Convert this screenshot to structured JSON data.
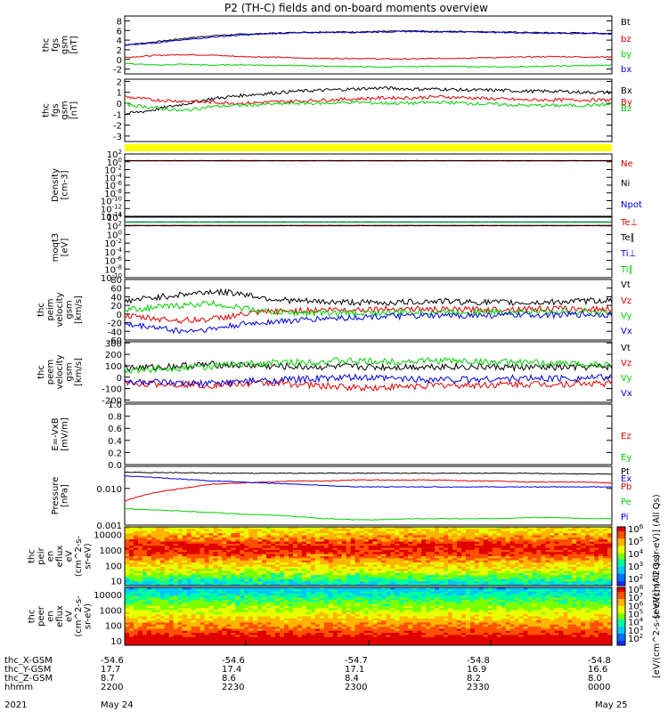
{
  "title": "P2 (TH-C) fields and on-board moments overview",
  "colors": {
    "black": "#000000",
    "red": "#e00000",
    "green": "#00d000",
    "blue": "#0000e0",
    "yellow": "#ffff00"
  },
  "chart_data": [
    {
      "type": "line",
      "id": "fgs",
      "ylabel": [
        "thc",
        "fgs",
        "gsm",
        "[nT]"
      ],
      "ylim": [
        -3,
        9
      ],
      "yticks": [
        "8",
        "6",
        "4",
        "2",
        "0",
        "-2"
      ],
      "series": [
        {
          "name": "Bt",
          "color": "black",
          "values": [
            3.0,
            3.6,
            4.3,
            4.9,
            5.2,
            5.4,
            5.6,
            5.7,
            5.7,
            5.8,
            5.9,
            5.8,
            5.8,
            5.7,
            5.6,
            5.5,
            5.5,
            5.4
          ]
        },
        {
          "name": "bz",
          "color": "red",
          "values": [
            0.4,
            0.8,
            1.0,
            0.9,
            0.6,
            0.5,
            0.3,
            0.2,
            0.2,
            0.1,
            0.1,
            0.2,
            0.3,
            0.4,
            0.5,
            0.6,
            0.5,
            0.5
          ]
        },
        {
          "name": "by",
          "color": "green",
          "values": [
            -0.8,
            -1.2,
            -1.0,
            -1.2,
            -1.1,
            -1.2,
            -1.3,
            -1.4,
            -1.5,
            -1.6,
            -1.5,
            -1.4,
            -1.5,
            -1.6,
            -1.5,
            -1.4,
            -1.3,
            -1.2
          ]
        },
        {
          "name": "bx",
          "color": "blue",
          "values": [
            3.0,
            3.4,
            4.0,
            4.6,
            5.0,
            5.3,
            5.5,
            5.6,
            5.6,
            5.7,
            5.8,
            5.7,
            5.7,
            5.6,
            5.5,
            5.4,
            5.4,
            5.3
          ]
        }
      ]
    },
    {
      "type": "line",
      "id": "fgs_dsl",
      "ylabel": [
        "thc",
        "fgs",
        "gsm",
        "[nT]"
      ],
      "ylim": [
        -3.5,
        2.2
      ],
      "yticks": [
        "2",
        "1",
        "0",
        "-1",
        "-2",
        "-3"
      ],
      "series": [
        {
          "name": "Bx",
          "color": "black",
          "values": [
            -1.0,
            -0.6,
            -0.1,
            0.4,
            0.7,
            0.9,
            1.1,
            1.2,
            1.3,
            1.4,
            1.3,
            1.3,
            1.2,
            1.2,
            1.1,
            1.1,
            1.0,
            1.0
          ]
        },
        {
          "name": "By",
          "color": "red",
          "values": [
            0.6,
            0.3,
            0.2,
            0.1,
            0.0,
            0.1,
            0.2,
            0.3,
            0.4,
            0.5,
            0.5,
            0.6,
            0.5,
            0.4,
            0.3,
            0.3,
            0.3,
            0.3
          ]
        },
        {
          "name": "Bz",
          "color": "green",
          "values": [
            -0.1,
            -0.4,
            -0.7,
            -0.3,
            -0.2,
            -0.1,
            0.0,
            0.0,
            0.1,
            0.0,
            0.0,
            0.1,
            0.0,
            -0.1,
            -0.2,
            -0.2,
            -0.2,
            -0.1
          ]
        }
      ]
    },
    {
      "type": "line",
      "id": "density",
      "ylabel": [
        "Density",
        "[cm-3]"
      ],
      "ylim": [
        -14,
        2
      ],
      "scale": "log",
      "yticks": [
        "10^2",
        "10^0",
        "10^-2",
        "10^-4",
        "10^-6",
        "10^-8",
        "10^-10",
        "10^-12",
        "10^-14"
      ],
      "series": [
        {
          "name": "Ne",
          "color": "red",
          "values": [
            0.2,
            0.2,
            0.2,
            0.2,
            0.2,
            0.2,
            0.2,
            0.2,
            0.2
          ]
        },
        {
          "name": "Ni",
          "color": "black",
          "values": [
            0.3,
            0.3,
            0.3,
            0.3,
            0.3,
            0.3,
            0.3,
            0.3,
            0.3
          ]
        },
        {
          "name": "Npot",
          "color": "blue",
          "values": []
        }
      ]
    },
    {
      "type": "line",
      "id": "temp",
      "ylabel": [
        "moqt3",
        "[eV]"
      ],
      "ylim": [
        -10,
        4
      ],
      "scale": "log",
      "yticks": [
        "10^4",
        "10^2",
        "10^0",
        "10^-2",
        "10^-4",
        "10^-6",
        "10^-8",
        "10^-10"
      ],
      "series": [
        {
          "name": "Te⊥",
          "color": "red",
          "values": [
            2.0,
            2.0,
            2.0,
            2.0,
            2.0,
            2.0,
            2.0
          ]
        },
        {
          "name": "Te∥",
          "color": "black",
          "values": [
            2.1,
            2.1,
            2.1,
            2.1,
            2.1,
            2.1,
            2.1
          ]
        },
        {
          "name": "Ti⊥",
          "color": "blue",
          "values": [
            2.9,
            2.9,
            2.9,
            2.9,
            2.9,
            2.9,
            2.9
          ]
        },
        {
          "name": "Ti∥",
          "color": "green",
          "values": [
            2.8,
            2.8,
            2.8,
            2.8,
            2.8,
            2.8,
            2.8
          ]
        }
      ]
    },
    {
      "type": "line",
      "id": "peim",
      "ylabel": [
        "thc",
        "peim",
        "velocity",
        "gsm",
        "[km/s]"
      ],
      "ylim": [
        -60,
        80
      ],
      "yticks": [
        "80",
        "60",
        "40",
        "20",
        "0",
        "-20",
        "-40",
        "-60"
      ],
      "series": [
        {
          "name": "Vt",
          "color": "black",
          "values": [
            30,
            38,
            45,
            52,
            48,
            36,
            30,
            28,
            27,
            26,
            28,
            30,
            28,
            27,
            26,
            28,
            30,
            32
          ]
        },
        {
          "name": "Vz",
          "color": "red",
          "values": [
            -5,
            -10,
            -15,
            -12,
            -2,
            5,
            8,
            10,
            10,
            12,
            12,
            10,
            10,
            11,
            12,
            12,
            11,
            12
          ]
        },
        {
          "name": "Vy",
          "color": "green",
          "values": [
            10,
            15,
            20,
            25,
            15,
            5,
            3,
            2,
            2,
            3,
            4,
            5,
            5,
            5,
            5,
            5,
            6,
            5
          ]
        },
        {
          "name": "Vx",
          "color": "blue",
          "values": [
            -25,
            -30,
            -40,
            -35,
            -25,
            -18,
            -15,
            -10,
            -8,
            -5,
            -5,
            -4,
            -3,
            -3,
            -2,
            -2,
            -1,
            -1
          ]
        }
      ]
    },
    {
      "type": "line",
      "id": "peem",
      "ylabel": [
        "thc",
        "peem",
        "velocity",
        "gsm",
        "[km/s]"
      ],
      "ylim": [
        -220,
        310
      ],
      "yticks": [
        "300",
        "200",
        "100",
        "0",
        "-100",
        "-200"
      ],
      "series": [
        {
          "name": "Vt",
          "color": "black",
          "values": [
            80,
            85,
            100,
            110,
            105,
            95,
            90,
            90,
            90,
            88,
            90,
            95,
            90,
            88,
            85,
            85,
            88,
            90
          ]
        },
        {
          "name": "Vz",
          "color": "red",
          "values": [
            -50,
            -60,
            -60,
            -70,
            -60,
            -50,
            -60,
            -80,
            -90,
            -90,
            -80,
            -70,
            -70,
            -65,
            -60,
            -60,
            -55,
            -55
          ]
        },
        {
          "name": "Vy",
          "color": "green",
          "values": [
            60,
            70,
            85,
            95,
            110,
            125,
            130,
            140,
            140,
            135,
            140,
            145,
            140,
            130,
            125,
            120,
            115,
            110
          ]
        },
        {
          "name": "Vx",
          "color": "blue",
          "values": [
            -40,
            -45,
            -60,
            -55,
            -40,
            -30,
            -20,
            -10,
            -5,
            -10,
            -15,
            -20,
            -20,
            -15,
            -10,
            -10,
            -5,
            -5
          ]
        }
      ]
    },
    {
      "type": "line",
      "id": "efield",
      "ylabel": [
        "E=-VxB",
        "[mV/m]"
      ],
      "ylim": [
        0,
        1
      ],
      "yticks": [
        "1.0",
        "0.8",
        "0.6",
        "0.4",
        "0.2",
        "0.0"
      ],
      "series": [
        {
          "name": "Ez",
          "color": "red",
          "values": []
        },
        {
          "name": "Ey",
          "color": "green",
          "values": []
        },
        {
          "name": "Ex",
          "color": "blue",
          "values": []
        }
      ]
    },
    {
      "type": "line",
      "id": "pressure",
      "ylabel": [
        "Pressure",
        "[nPa]"
      ],
      "ylim": [
        0.001,
        0.04
      ],
      "scale": "log",
      "yticks": [
        "0.010",
        "0.001"
      ],
      "series": [
        {
          "name": "Pt",
          "color": "black",
          "values": [
            0.028,
            0.027,
            0.027,
            0.026,
            0.026,
            0.026,
            0.026,
            0.026,
            0.026,
            0.026,
            0.026,
            0.026,
            0.026,
            0.026,
            0.026,
            0.025,
            0.025,
            0.025
          ]
        },
        {
          "name": "Pb",
          "color": "red",
          "values": [
            0.0045,
            0.0075,
            0.01,
            0.013,
            0.014,
            0.015,
            0.016,
            0.016,
            0.017,
            0.017,
            0.017,
            0.017,
            0.016,
            0.016,
            0.015,
            0.015,
            0.015,
            0.014
          ]
        },
        {
          "name": "Pe",
          "color": "green",
          "values": [
            0.0028,
            0.0026,
            0.0024,
            0.0022,
            0.002,
            0.0019,
            0.0017,
            0.0015,
            0.0014,
            0.0014,
            0.0015,
            0.0015,
            0.0015,
            0.0015,
            0.0016,
            0.0016,
            0.0015,
            0.0015
          ]
        },
        {
          "name": "Pi",
          "color": "blue",
          "values": [
            0.022,
            0.02,
            0.018,
            0.016,
            0.015,
            0.014,
            0.013,
            0.012,
            0.011,
            0.011,
            0.011,
            0.011,
            0.011,
            0.011,
            0.011,
            0.011,
            0.011,
            0.011
          ]
        }
      ]
    },
    {
      "type": "heatmap",
      "id": "peir",
      "ylabel": [
        "thc",
        "peir",
        "en",
        "eflux",
        "eV",
        "(cm^2-s-",
        "sr-eV)"
      ],
      "scale": "log",
      "ylim": [
        5,
        30000
      ],
      "yticks": [
        "10000",
        "1000",
        "100",
        "10"
      ],
      "colorbar": {
        "label": "[eV/(cm^2-s-sr-eV)] (All Qs)",
        "ticks": [
          "10^6",
          "10^5",
          "10^4",
          "10^3",
          "10^2"
        ]
      }
    },
    {
      "type": "heatmap",
      "id": "peer",
      "ylabel": [
        "thc",
        "peer",
        "en",
        "eflux",
        "eV",
        "(cm^2-s-",
        "sr-eV)"
      ],
      "scale": "log",
      "ylim": [
        5,
        30000
      ],
      "yticks": [
        "10000",
        "1000",
        "100",
        "10"
      ],
      "colorbar": {
        "label": "[eV/(cm^2-s-sr-eV)] (All Qs)",
        "ticks": [
          "10^8",
          "10^7",
          "10^6",
          "10^5",
          "10^4",
          "10^3",
          "10^2"
        ]
      }
    }
  ],
  "xaxis": {
    "rows": [
      {
        "label": "thc_X-GSM",
        "values": [
          "-54.6",
          "-54.6",
          "-54.7",
          "-54.8",
          "-54.8"
        ]
      },
      {
        "label": "thc_Y-GSM",
        "values": [
          "17.7",
          "17.4",
          "17.1",
          "16.9",
          "16.6"
        ]
      },
      {
        "label": "thc_Z-GSM",
        "values": [
          "8.7",
          "8.6",
          "8.4",
          "8.2",
          "8.0"
        ]
      },
      {
        "label": "hhmm",
        "values": [
          "2200",
          "2230",
          "2300",
          "2330",
          "0000"
        ]
      }
    ],
    "year": "2021",
    "date_start": "May 24",
    "date_end": "May 25"
  }
}
